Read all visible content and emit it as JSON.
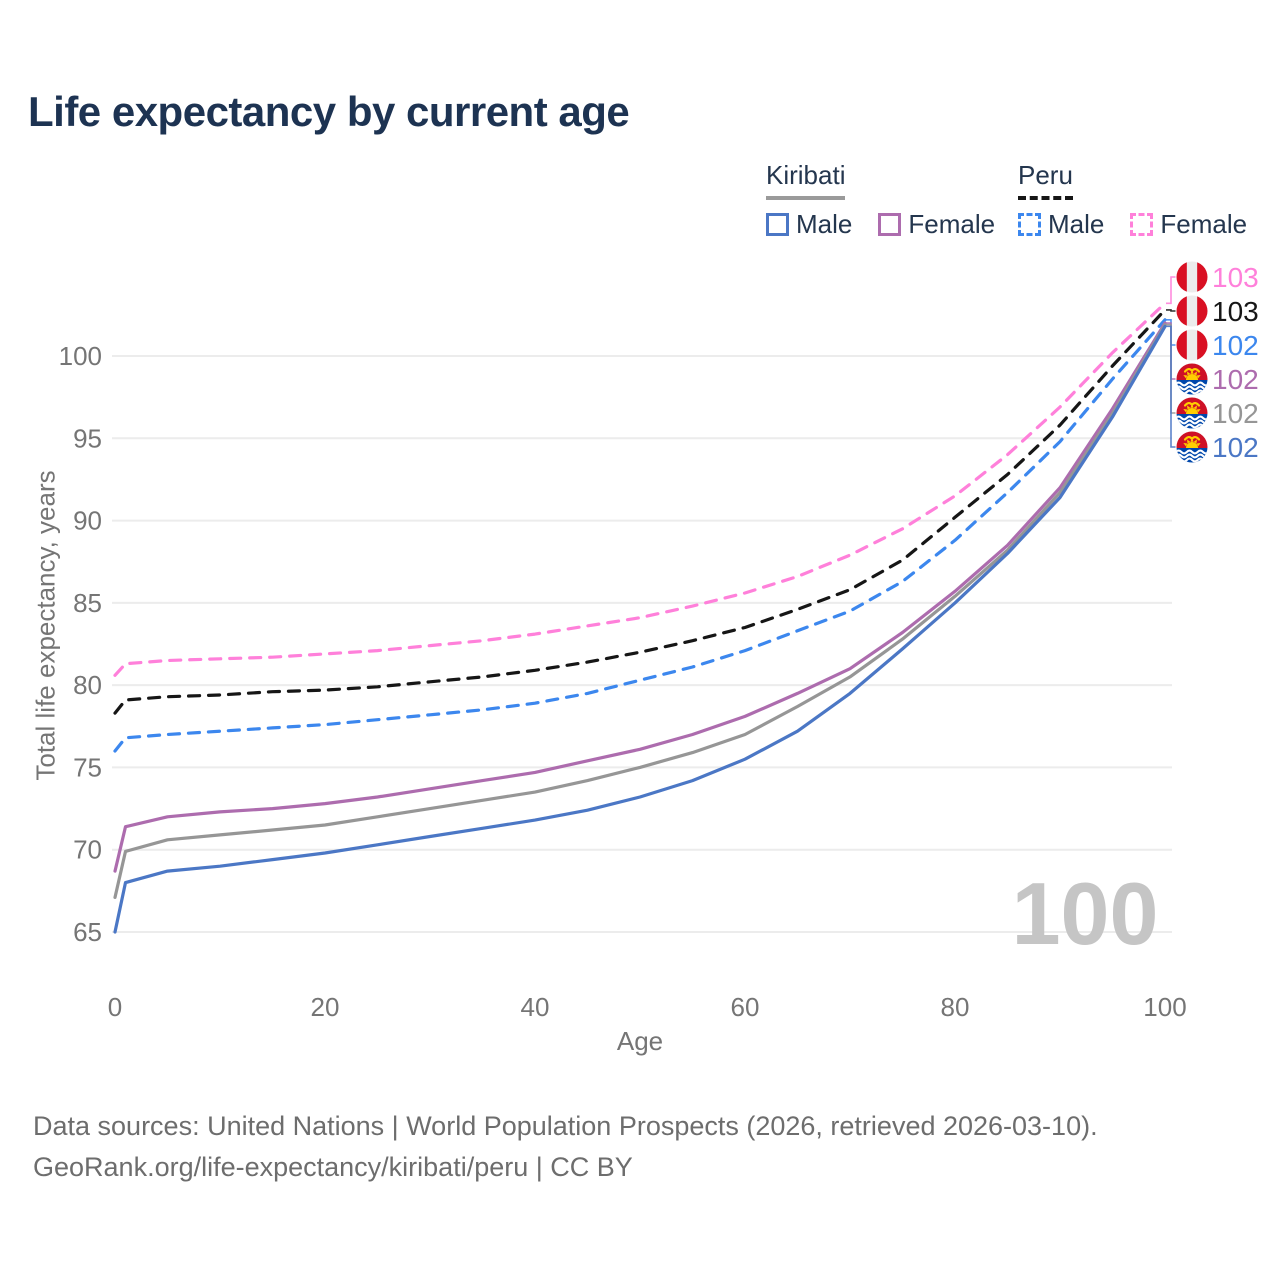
{
  "title": "Life expectancy by current age",
  "legend": {
    "groups": [
      {
        "country": "Kiribati",
        "line_style": "solid",
        "underline_color": "#9a9a9a",
        "items": [
          {
            "label": "Male",
            "color": "#4b77c5",
            "dash": false
          },
          {
            "label": "Female",
            "color": "#ad6cae",
            "dash": false
          }
        ]
      },
      {
        "country": "Peru",
        "line_style": "dashed",
        "underline_color": "#161616",
        "items": [
          {
            "label": "Male",
            "color": "#3c87ee",
            "dash": true
          },
          {
            "label": "Female",
            "color": "#ff80da",
            "dash": true
          }
        ]
      }
    ]
  },
  "chart_data": {
    "type": "line",
    "title": "Life expectancy by current age",
    "xlabel": "Age",
    "ylabel": "Total life expectancy, years",
    "xticks": [
      0,
      20,
      40,
      60,
      80,
      100
    ],
    "yticks": [
      65,
      70,
      75,
      80,
      85,
      90,
      95,
      100
    ],
    "xlim": [
      0,
      100
    ],
    "ylim": [
      63.5,
      104.5
    ],
    "grid": "horizontal",
    "legend_position": "top-right",
    "watermark": "100",
    "x": [
      0,
      1,
      5,
      10,
      15,
      20,
      25,
      30,
      35,
      40,
      45,
      50,
      55,
      60,
      65,
      70,
      75,
      80,
      85,
      90,
      95,
      100
    ],
    "series": [
      {
        "name": "Peru Female",
        "country": "Peru",
        "sex": "Female",
        "flag": "peru",
        "color": "#ff80da",
        "dash": true,
        "end_label": "103",
        "values": [
          80.6,
          81.3,
          81.5,
          81.6,
          81.7,
          81.9,
          82.1,
          82.4,
          82.7,
          83.1,
          83.6,
          84.1,
          84.8,
          85.6,
          86.6,
          87.9,
          89.5,
          91.5,
          94.0,
          96.9,
          100.2,
          103.2
        ]
      },
      {
        "name": "Peru Total",
        "country": "Peru",
        "sex": "Total",
        "flag": "peru",
        "color": "#161616",
        "dash": true,
        "end_label": "103",
        "values": [
          78.3,
          79.1,
          79.3,
          79.4,
          79.6,
          79.7,
          79.9,
          80.2,
          80.5,
          80.9,
          81.4,
          82.0,
          82.7,
          83.5,
          84.6,
          85.8,
          87.6,
          90.2,
          92.8,
          95.8,
          99.4,
          102.8
        ]
      },
      {
        "name": "Peru Male",
        "country": "Peru",
        "sex": "Male",
        "flag": "peru",
        "color": "#3c87ee",
        "dash": true,
        "end_label": "102",
        "values": [
          76.0,
          76.8,
          77.0,
          77.2,
          77.4,
          77.6,
          77.9,
          78.2,
          78.5,
          78.9,
          79.5,
          80.3,
          81.1,
          82.1,
          83.3,
          84.5,
          86.3,
          88.8,
          91.7,
          94.8,
          98.6,
          102.2
        ]
      },
      {
        "name": "Kiribati Female",
        "country": "Kiribati",
        "sex": "Female",
        "flag": "kiribati",
        "color": "#ad6cae",
        "dash": false,
        "end_label": "102",
        "values": [
          68.7,
          71.4,
          72.0,
          72.3,
          72.5,
          72.8,
          73.2,
          73.7,
          74.2,
          74.7,
          75.4,
          76.1,
          77.0,
          78.1,
          79.5,
          81.0,
          83.2,
          85.7,
          88.5,
          92.0,
          96.8,
          102.0
        ]
      },
      {
        "name": "Kiribati Total",
        "country": "Kiribati",
        "sex": "Total",
        "flag": "kiribati",
        "color": "#969696",
        "dash": false,
        "end_label": "102",
        "values": [
          67.1,
          69.9,
          70.6,
          70.9,
          71.2,
          71.5,
          72.0,
          72.5,
          73.0,
          73.5,
          74.2,
          75.0,
          75.9,
          77.0,
          78.7,
          80.5,
          82.8,
          85.4,
          88.2,
          91.7,
          96.5,
          101.9
        ]
      },
      {
        "name": "Kiribati Male",
        "country": "Kiribati",
        "sex": "Male",
        "flag": "kiribati",
        "color": "#4b77c5",
        "dash": false,
        "end_label": "102",
        "values": [
          65.0,
          68.0,
          68.7,
          69.0,
          69.4,
          69.8,
          70.3,
          70.8,
          71.3,
          71.8,
          72.4,
          73.2,
          74.2,
          75.5,
          77.2,
          79.5,
          82.2,
          85.0,
          88.0,
          91.4,
          96.3,
          101.8
        ]
      }
    ]
  },
  "footer": {
    "line1": "Data sources: United Nations | World Population Prospects (2026, retrieved 2026-03-10).",
    "line2": "GeoRank.org/life-expectancy/kiribati/peru | CC BY"
  },
  "colors": {
    "title": "#1d3352",
    "legend_text": "#24364e",
    "tick_text": "#757575",
    "grid": "#ececec",
    "footer_text": "#6d6d6d",
    "watermark": "#c5c5c5"
  }
}
